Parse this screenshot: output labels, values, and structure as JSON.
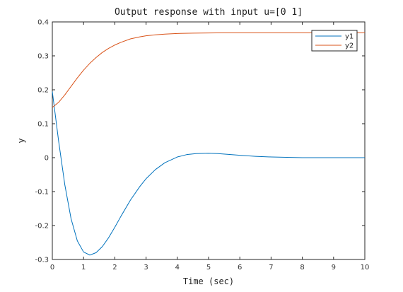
{
  "chart_data": {
    "type": "line",
    "title": "Output response with input u=[0 1]",
    "xlabel": "Time (sec)",
    "ylabel": "y",
    "xlim": [
      0,
      10
    ],
    "ylim": [
      -0.3,
      0.4
    ],
    "xticks": [
      0,
      1,
      2,
      3,
      4,
      5,
      6,
      7,
      8,
      9,
      10
    ],
    "yticks": [
      -0.3,
      -0.2,
      -0.1,
      0,
      0.1,
      0.2,
      0.3,
      0.4
    ],
    "grid": false,
    "legend_position": "top-right",
    "series": [
      {
        "name": "y1",
        "color": "#0072BD",
        "x": [
          0,
          0.2,
          0.4,
          0.6,
          0.8,
          1.0,
          1.2,
          1.4,
          1.6,
          1.8,
          2.0,
          2.2,
          2.5,
          2.8,
          3.0,
          3.3,
          3.6,
          4.0,
          4.3,
          4.6,
          5.0,
          5.3,
          5.6,
          6.0,
          6.5,
          7.0,
          7.5,
          8.0,
          8.5,
          9.0,
          9.5,
          10.0
        ],
        "y": [
          0.195,
          0.05,
          -0.08,
          -0.18,
          -0.245,
          -0.278,
          -0.287,
          -0.28,
          -0.262,
          -0.236,
          -0.205,
          -0.172,
          -0.125,
          -0.085,
          -0.062,
          -0.035,
          -0.015,
          0.002,
          0.009,
          0.012,
          0.013,
          0.012,
          0.01,
          0.007,
          0.004,
          0.002,
          0.001,
          0.0,
          0.0,
          0.0,
          0.0,
          0.0
        ]
      },
      {
        "name": "y2",
        "color": "#D95319",
        "x": [
          0,
          0.2,
          0.4,
          0.6,
          0.8,
          1.0,
          1.2,
          1.4,
          1.6,
          1.8,
          2.0,
          2.2,
          2.5,
          2.8,
          3.0,
          3.3,
          3.6,
          4.0,
          4.5,
          5.0,
          5.5,
          6.0,
          7.0,
          8.0,
          9.0,
          10.0
        ],
        "y": [
          0.148,
          0.163,
          0.185,
          0.21,
          0.235,
          0.258,
          0.278,
          0.295,
          0.31,
          0.322,
          0.332,
          0.34,
          0.35,
          0.356,
          0.359,
          0.362,
          0.364,
          0.366,
          0.367,
          0.3675,
          0.368,
          0.368,
          0.368,
          0.368,
          0.368,
          0.368
        ]
      }
    ]
  }
}
